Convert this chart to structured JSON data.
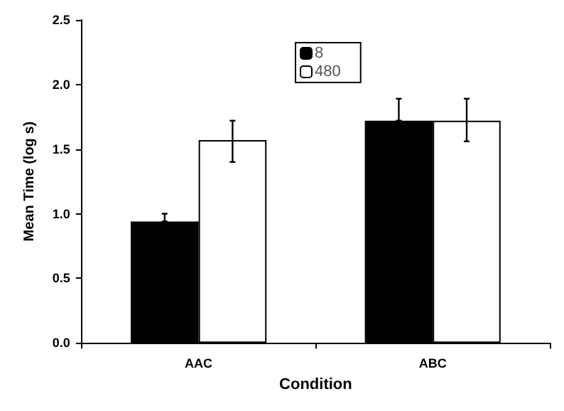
{
  "chart_data": {
    "type": "bar",
    "xlabel": "Condition",
    "ylabel": "Mean Time (log s)",
    "categories": [
      "AAC",
      "ABC"
    ],
    "series": [
      {
        "name": "8",
        "color": "#000000",
        "values": [
          0.94,
          1.72
        ],
        "errors": [
          [
            0.94,
            1.0
          ],
          [
            1.72,
            1.89
          ]
        ]
      },
      {
        "name": "480",
        "color": "#ffffff",
        "values": [
          1.57,
          1.72
        ],
        "errors": [
          [
            1.4,
            1.72
          ],
          [
            1.56,
            1.89
          ]
        ]
      }
    ],
    "ylim": [
      0,
      2.5
    ],
    "yticks": [
      {
        "value": 0,
        "label": "0.0"
      },
      {
        "value": 0.5,
        "label": "0.5"
      },
      {
        "value": 1,
        "label": "1.0"
      },
      {
        "value": 1.5,
        "label": "1.5"
      },
      {
        "value": 2,
        "label": "2.0"
      },
      {
        "value": 2.5,
        "label": "2.5"
      }
    ],
    "grid": false,
    "legend": "top"
  }
}
